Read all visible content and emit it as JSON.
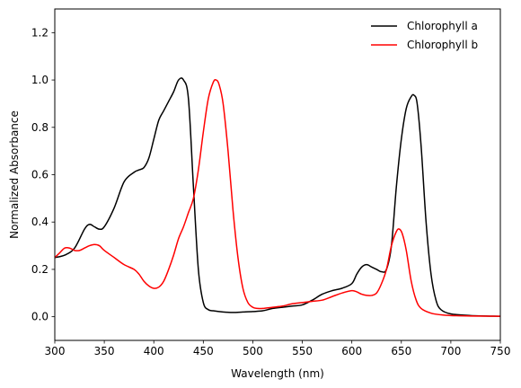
{
  "chart_data": {
    "type": "line",
    "xlabel": "Wavelength (nm)",
    "ylabel": "Normalized Absorbance",
    "xlim": [
      300,
      750
    ],
    "ylim": [
      -0.1,
      1.3
    ],
    "xticks": [
      300,
      350,
      400,
      450,
      500,
      550,
      600,
      650,
      700,
      750
    ],
    "yticks": [
      0.0,
      0.2,
      0.4,
      0.6,
      0.8,
      1.0,
      1.2
    ],
    "xtick_labels": [
      "300",
      "350",
      "400",
      "450",
      "500",
      "550",
      "600",
      "650",
      "700",
      "750"
    ],
    "ytick_labels": [
      "0.0",
      "0.2",
      "0.4",
      "0.6",
      "0.8",
      "1.0",
      "1.2"
    ],
    "grid": false,
    "legend_position": "top-right",
    "series": [
      {
        "name": "Chlorophyll a",
        "color": "#000000",
        "x": [
          300,
          310,
          320,
          330,
          335,
          340,
          345,
          350,
          360,
          370,
          380,
          385,
          390,
          395,
          400,
          405,
          410,
          415,
          420,
          425,
          430,
          435,
          440,
          445,
          450,
          455,
          460,
          470,
          480,
          490,
          500,
          510,
          520,
          530,
          540,
          550,
          560,
          570,
          580,
          590,
          600,
          605,
          610,
          615,
          620,
          625,
          630,
          635,
          640,
          645,
          650,
          655,
          660,
          663,
          666,
          670,
          675,
          680,
          685,
          690,
          700,
          720,
          750
        ],
        "y": [
          0.25,
          0.26,
          0.29,
          0.37,
          0.39,
          0.38,
          0.37,
          0.38,
          0.46,
          0.57,
          0.61,
          0.62,
          0.63,
          0.67,
          0.75,
          0.83,
          0.87,
          0.91,
          0.95,
          1.0,
          1.0,
          0.92,
          0.55,
          0.2,
          0.06,
          0.03,
          0.025,
          0.02,
          0.018,
          0.02,
          0.022,
          0.025,
          0.035,
          0.04,
          0.045,
          0.05,
          0.07,
          0.095,
          0.11,
          0.12,
          0.14,
          0.18,
          0.21,
          0.22,
          0.21,
          0.2,
          0.19,
          0.2,
          0.3,
          0.55,
          0.75,
          0.88,
          0.93,
          0.935,
          0.9,
          0.72,
          0.4,
          0.18,
          0.07,
          0.03,
          0.012,
          0.005,
          0.002
        ]
      },
      {
        "name": "Chlorophyll b",
        "color": "#ff0000",
        "x": [
          300,
          305,
          310,
          315,
          320,
          325,
          330,
          335,
          340,
          345,
          350,
          360,
          370,
          380,
          385,
          390,
          395,
          400,
          405,
          410,
          415,
          420,
          425,
          430,
          435,
          440,
          445,
          450,
          455,
          460,
          463,
          466,
          470,
          475,
          480,
          485,
          490,
          495,
          500,
          505,
          510,
          520,
          530,
          540,
          550,
          560,
          570,
          580,
          590,
          600,
          605,
          610,
          615,
          620,
          625,
          630,
          635,
          640,
          645,
          648,
          651,
          655,
          660,
          665,
          670,
          680,
          690,
          700,
          720,
          750
        ],
        "y": [
          0.25,
          0.27,
          0.29,
          0.29,
          0.28,
          0.28,
          0.29,
          0.3,
          0.305,
          0.3,
          0.28,
          0.25,
          0.22,
          0.2,
          0.18,
          0.15,
          0.13,
          0.12,
          0.125,
          0.15,
          0.2,
          0.26,
          0.33,
          0.38,
          0.44,
          0.5,
          0.62,
          0.78,
          0.92,
          0.99,
          1.0,
          0.98,
          0.9,
          0.7,
          0.45,
          0.25,
          0.12,
          0.06,
          0.04,
          0.035,
          0.035,
          0.04,
          0.045,
          0.055,
          0.06,
          0.065,
          0.07,
          0.085,
          0.1,
          0.11,
          0.105,
          0.095,
          0.09,
          0.09,
          0.1,
          0.14,
          0.2,
          0.3,
          0.36,
          0.37,
          0.35,
          0.28,
          0.15,
          0.07,
          0.035,
          0.015,
          0.008,
          0.005,
          0.003,
          0.002
        ]
      }
    ]
  }
}
